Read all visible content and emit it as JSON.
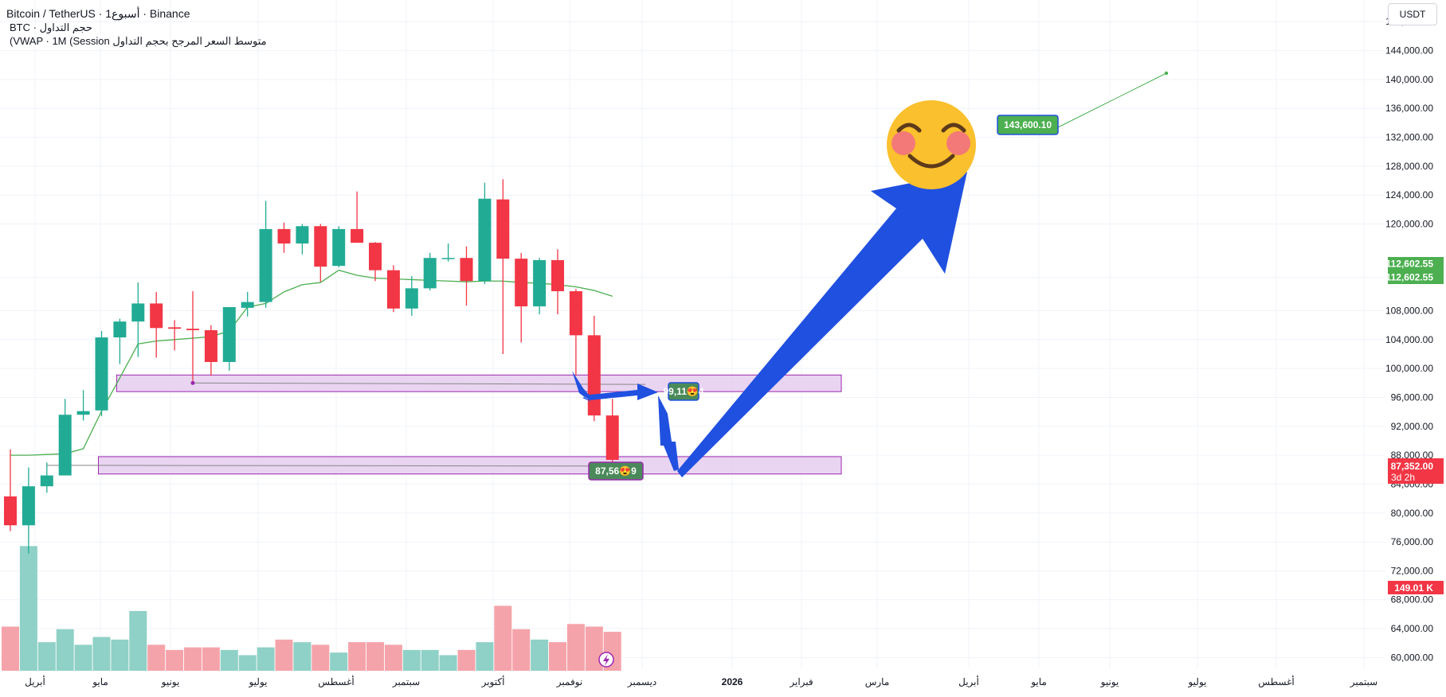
{
  "header": {
    "symbol_line": "Bitcoin / TetherUS · 1أسبوع · Binance",
    "volume_line": "BTC · حجم التداول",
    "vwap_line": "(VWAP · 1M (Session متوسط السعر المرجح بحجم التداول"
  },
  "currency_button": "USDT",
  "colors": {
    "up": "#22ab94",
    "down": "#f23645",
    "vol_up": "#8fd1c6",
    "vol_down": "#f5a3aa",
    "vwap": "#4caf50",
    "zone_fill": "#e3c9ee",
    "zone_border": "#9c27b0",
    "arrow": "#2050e0",
    "target_label": "#4caf50",
    "price_label_red": "#f23645"
  },
  "chart_data": {
    "type": "candlestick",
    "symbol": "Bitcoin / TetherUS",
    "exchange": "Binance",
    "quote": "USDT",
    "x_tick_labels": [
      "أبريل",
      "مايو",
      "يونيو",
      "يوليو",
      "أغسطس",
      "سبتمبر",
      "أكتوبر",
      "نوفمبر",
      "ديسمبر",
      "2026",
      "فبراير",
      "مارس",
      "أبريل",
      "مايو",
      "يونيو",
      "يوليو",
      "أغسطس",
      "سبتمبر"
    ],
    "y_tick_labels": [
      "148,000.00",
      "144,000.00",
      "140,000.00",
      "136,000.00",
      "132,000.00",
      "128,000.00",
      "124,000.00",
      "120,000.00",
      "112,602.55",
      "108,000.00",
      "104,000.00",
      "100,000.00",
      "96,000.00",
      "92,000.00",
      "88,000.00",
      "84,000.00",
      "80,000.00",
      "76,000.00",
      "72,000.00",
      "68,000.00",
      "64,000.00",
      "60,000.00"
    ],
    "y_tick_values": [
      148000,
      144000,
      140000,
      136000,
      132000,
      128000,
      124000,
      120000,
      112602.55,
      108000,
      104000,
      100000,
      96000,
      92000,
      88000,
      84000,
      80000,
      76000,
      72000,
      68000,
      64000,
      60000
    ],
    "ylim": [
      58500,
      151000
    ],
    "candles": [
      {
        "o": 82300,
        "h": 88800,
        "l": 77500,
        "c": 78300
      },
      {
        "o": 78300,
        "h": 86300,
        "l": 74400,
        "c": 83700
      },
      {
        "o": 83700,
        "h": 87000,
        "l": 82800,
        "c": 85200
      },
      {
        "o": 85200,
        "h": 95800,
        "l": 85200,
        "c": 93600
      },
      {
        "o": 93600,
        "h": 97000,
        "l": 92800,
        "c": 94100
      },
      {
        "o": 94200,
        "h": 105200,
        "l": 93400,
        "c": 104300
      },
      {
        "o": 104300,
        "h": 106900,
        "l": 100600,
        "c": 106500
      },
      {
        "o": 106500,
        "h": 111900,
        "l": 101600,
        "c": 109000
      },
      {
        "o": 109000,
        "h": 110600,
        "l": 101500,
        "c": 105600
      },
      {
        "o": 105700,
        "h": 106700,
        "l": 102500,
        "c": 105500
      },
      {
        "o": 105500,
        "h": 110700,
        "l": 98300,
        "c": 105300
      },
      {
        "o": 105300,
        "h": 106000,
        "l": 99000,
        "c": 100900
      },
      {
        "o": 100900,
        "h": 108500,
        "l": 99700,
        "c": 108500
      },
      {
        "o": 108400,
        "h": 110600,
        "l": 107200,
        "c": 109200
      },
      {
        "o": 109200,
        "h": 123200,
        "l": 108400,
        "c": 119300
      },
      {
        "o": 119300,
        "h": 120200,
        "l": 116000,
        "c": 117300
      },
      {
        "o": 117300,
        "h": 120000,
        "l": 115800,
        "c": 119700
      },
      {
        "o": 119700,
        "h": 120000,
        "l": 112000,
        "c": 114100
      },
      {
        "o": 114200,
        "h": 119700,
        "l": 114000,
        "c": 119300
      },
      {
        "o": 119300,
        "h": 124500,
        "l": 117500,
        "c": 117400
      },
      {
        "o": 117400,
        "h": 117500,
        "l": 112100,
        "c": 113600
      },
      {
        "o": 113600,
        "h": 114300,
        "l": 107800,
        "c": 108300
      },
      {
        "o": 108300,
        "h": 112800,
        "l": 107300,
        "c": 111100
      },
      {
        "o": 111100,
        "h": 116000,
        "l": 110800,
        "c": 115300
      },
      {
        "o": 115300,
        "h": 117300,
        "l": 114800,
        "c": 115300
      },
      {
        "o": 115300,
        "h": 116900,
        "l": 108700,
        "c": 112100
      },
      {
        "o": 112100,
        "h": 125700,
        "l": 111700,
        "c": 123500
      },
      {
        "o": 123400,
        "h": 126200,
        "l": 102000,
        "c": 115200
      },
      {
        "o": 115200,
        "h": 116000,
        "l": 103600,
        "c": 108600
      },
      {
        "o": 108600,
        "h": 115300,
        "l": 107500,
        "c": 115000
      },
      {
        "o": 115000,
        "h": 116500,
        "l": 107500,
        "c": 110700
      },
      {
        "o": 110700,
        "h": 111000,
        "l": 99000,
        "c": 104600
      },
      {
        "o": 104600,
        "h": 107300,
        "l": 92700,
        "c": 93500
      },
      {
        "o": 93500,
        "h": 95800,
        "l": 86300,
        "c": 87352
      }
    ],
    "volume": [
      74,
      105,
      68,
      73,
      67,
      70,
      69,
      80,
      67,
      65,
      66,
      66,
      65,
      63,
      66,
      69,
      68,
      67,
      64,
      68,
      68,
      67,
      65,
      65,
      63,
      65,
      68,
      82,
      73,
      69,
      68,
      75,
      74,
      72
    ],
    "volume_last_label": "149.01 K",
    "vwap": [
      88000,
      88000,
      88100,
      88200,
      88900,
      94100,
      98700,
      103400,
      103800,
      104000,
      104200,
      104400,
      105200,
      108500,
      109000,
      110600,
      111600,
      111900,
      113600,
      112900,
      112500,
      112400,
      112300,
      112200,
      112100,
      112000,
      112100,
      112100,
      111900,
      111800,
      111600,
      111300,
      110800,
      110000
    ],
    "support_zones": [
      {
        "low": 96800,
        "high": 99100,
        "from_bar": 6,
        "label": "99,11😍4"
      },
      {
        "low": 85400,
        "high": 87800,
        "from_bar": 5,
        "label": "87,56😍9"
      }
    ],
    "current_price_label": "87,352.00",
    "countdown_label": "3d 2h",
    "vwap_price_label": "112,602.55",
    "green_price_label_1": "112,602.55",
    "green_price_label_2": "112,602.55",
    "target_label": "143,600.10",
    "target_price": 143600.1
  }
}
